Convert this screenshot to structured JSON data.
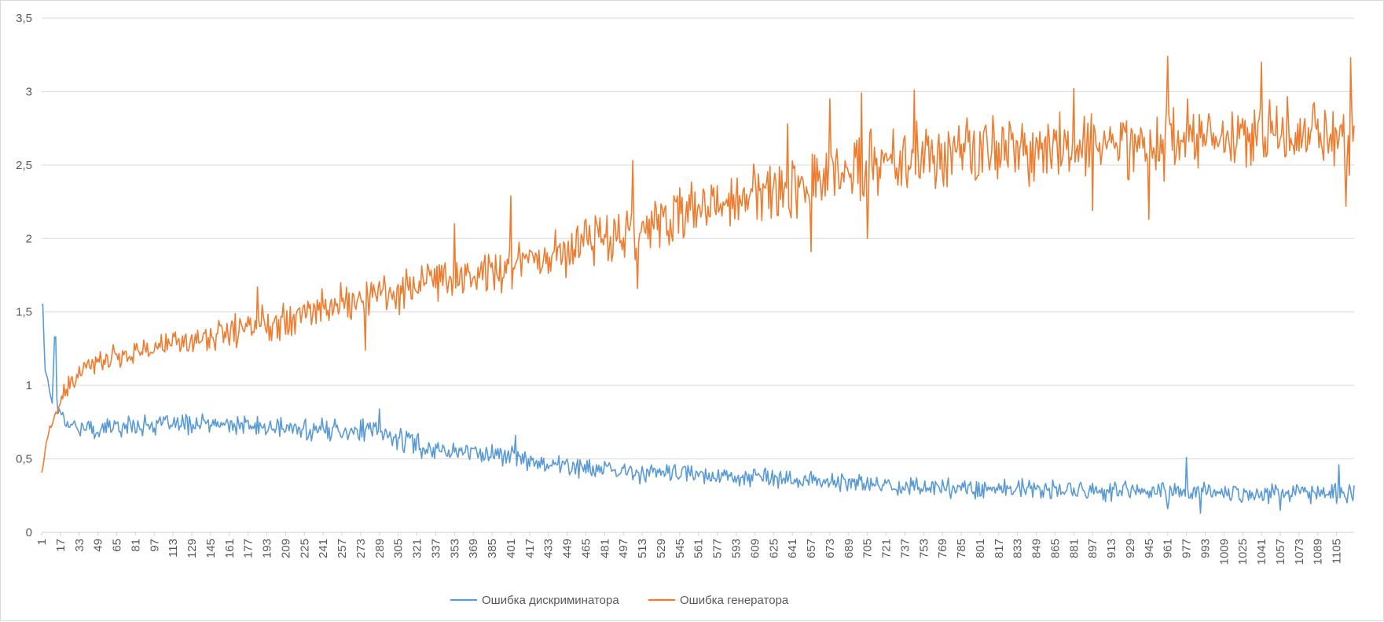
{
  "chart_data": {
    "type": "line",
    "title": "",
    "xlabel": "",
    "ylabel": "",
    "ylim": [
      0,
      3.5
    ],
    "y_ticks": [
      "0",
      "0,5",
      "1",
      "1,5",
      "2",
      "2,5",
      "3",
      "3,5"
    ],
    "y_tick_values": [
      0,
      0.5,
      1,
      1.5,
      2,
      2.5,
      3,
      3.5
    ],
    "x_range": [
      1,
      1120
    ],
    "x_ticks": [
      "1",
      "17",
      "33",
      "49",
      "65",
      "81",
      "97",
      "113",
      "129",
      "145",
      "161",
      "177",
      "193",
      "209",
      "225",
      "241",
      "257",
      "273",
      "289",
      "305",
      "321",
      "337",
      "353",
      "369",
      "385",
      "401",
      "417",
      "433",
      "449",
      "465",
      "481",
      "497",
      "513",
      "529",
      "545",
      "561",
      "577",
      "593",
      "609",
      "625",
      "641",
      "657",
      "673",
      "689",
      "705",
      "721",
      "737",
      "753",
      "769",
      "785",
      "801",
      "817",
      "833",
      "849",
      "865",
      "881",
      "897",
      "913",
      "929",
      "945",
      "961",
      "977",
      "993",
      "1009",
      "1025",
      "1041",
      "1057",
      "1073",
      "1089",
      "1105"
    ],
    "grid": "horizontal",
    "legend_position": "bottom",
    "series": [
      {
        "name": "Ошибка дискриминатора",
        "color": "#5b9bd5",
        "x": [
          1,
          2,
          3,
          4,
          6,
          8,
          10,
          12,
          14,
          15,
          16,
          18,
          20,
          25,
          30,
          40,
          50,
          60,
          80,
          100,
          130,
          160,
          200,
          240,
          280,
          300,
          320,
          340,
          360,
          380,
          400,
          420,
          440,
          460,
          480,
          500,
          540,
          580,
          620,
          660,
          700,
          750,
          800,
          850,
          900,
          950,
          977,
          1000,
          1050,
          1100,
          1120
        ],
        "values": [
          1.48,
          1.55,
          1.3,
          1.1,
          1.05,
          0.95,
          0.88,
          1.33,
          0.9,
          0.82,
          0.85,
          0.8,
          0.78,
          0.75,
          0.72,
          0.7,
          0.7,
          0.72,
          0.73,
          0.73,
          0.74,
          0.73,
          0.71,
          0.7,
          0.69,
          0.65,
          0.6,
          0.56,
          0.55,
          0.54,
          0.52,
          0.49,
          0.46,
          0.44,
          0.42,
          0.41,
          0.4,
          0.39,
          0.37,
          0.35,
          0.33,
          0.31,
          0.3,
          0.29,
          0.28,
          0.27,
          0.28,
          0.27,
          0.27,
          0.27,
          0.27
        ],
        "noise": [
          0,
          0,
          0,
          0,
          0,
          0,
          0,
          0,
          0.03,
          0.04,
          0.04,
          0.04,
          0.05,
          0.05,
          0.05,
          0.06,
          0.06,
          0.06,
          0.06,
          0.06,
          0.06,
          0.06,
          0.06,
          0.07,
          0.07,
          0.07,
          0.07,
          0.06,
          0.06,
          0.06,
          0.07,
          0.07,
          0.06,
          0.06,
          0.06,
          0.06,
          0.06,
          0.06,
          0.06,
          0.06,
          0.06,
          0.06,
          0.06,
          0.06,
          0.06,
          0.06,
          0.07,
          0.06,
          0.06,
          0.06,
          0.06
        ],
        "peaks": [
          {
            "x": 1,
            "y": 1.55
          },
          {
            "x": 13,
            "y": 1.33
          },
          {
            "x": 289,
            "y": 0.84
          },
          {
            "x": 405,
            "y": 0.66
          },
          {
            "x": 977,
            "y": 0.51
          },
          {
            "x": 1107,
            "y": 0.46
          }
        ],
        "troughs": [
          {
            "x": 961,
            "y": 0.16
          },
          {
            "x": 989,
            "y": 0.13
          },
          {
            "x": 1057,
            "y": 0.15
          }
        ]
      },
      {
        "name": "Ошибка генератора",
        "color": "#ed7d31",
        "x": [
          1,
          3,
          5,
          8,
          12,
          16,
          20,
          25,
          33,
          40,
          50,
          65,
          81,
          97,
          113,
          129,
          145,
          161,
          177,
          193,
          209,
          225,
          241,
          257,
          273,
          289,
          305,
          321,
          337,
          353,
          369,
          385,
          401,
          417,
          433,
          449,
          465,
          481,
          497,
          513,
          529,
          545,
          561,
          577,
          593,
          609,
          625,
          641,
          657,
          673,
          689,
          705,
          721,
          737,
          753,
          769,
          785,
          801,
          817,
          833,
          849,
          865,
          881,
          897,
          913,
          929,
          945,
          961,
          977,
          993,
          1009,
          1025,
          1041,
          1057,
          1073,
          1089,
          1105,
          1120
        ],
        "values": [
          0.4,
          0.5,
          0.62,
          0.7,
          0.78,
          0.86,
          0.94,
          1.0,
          1.07,
          1.12,
          1.17,
          1.2,
          1.23,
          1.26,
          1.28,
          1.3,
          1.33,
          1.36,
          1.4,
          1.43,
          1.46,
          1.5,
          1.53,
          1.56,
          1.59,
          1.62,
          1.65,
          1.68,
          1.7,
          1.73,
          1.76,
          1.79,
          1.83,
          1.87,
          1.9,
          1.94,
          1.98,
          2.02,
          2.06,
          2.09,
          2.12,
          2.16,
          2.19,
          2.23,
          2.26,
          2.3,
          2.34,
          2.37,
          2.4,
          2.44,
          2.47,
          2.49,
          2.51,
          2.53,
          2.55,
          2.56,
          2.57,
          2.58,
          2.59,
          2.6,
          2.61,
          2.62,
          2.63,
          2.63,
          2.64,
          2.65,
          2.65,
          2.66,
          2.67,
          2.67,
          2.68,
          2.68,
          2.68,
          2.68,
          2.69,
          2.69,
          2.69,
          2.69
        ],
        "noise": [
          0.02,
          0.03,
          0.04,
          0.04,
          0.05,
          0.05,
          0.06,
          0.06,
          0.06,
          0.06,
          0.06,
          0.07,
          0.07,
          0.08,
          0.08,
          0.08,
          0.09,
          0.1,
          0.1,
          0.11,
          0.11,
          0.11,
          0.12,
          0.12,
          0.12,
          0.13,
          0.13,
          0.13,
          0.14,
          0.14,
          0.14,
          0.14,
          0.15,
          0.15,
          0.15,
          0.16,
          0.16,
          0.16,
          0.17,
          0.17,
          0.17,
          0.18,
          0.18,
          0.18,
          0.19,
          0.19,
          0.19,
          0.2,
          0.2,
          0.2,
          0.21,
          0.21,
          0.21,
          0.21,
          0.22,
          0.22,
          0.22,
          0.22,
          0.22,
          0.22,
          0.22,
          0.22,
          0.22,
          0.22,
          0.22,
          0.22,
          0.22,
          0.22,
          0.22,
          0.22,
          0.22,
          0.22,
          0.22,
          0.22,
          0.22,
          0.22,
          0.22,
          0.22
        ],
        "peaks": [
          {
            "x": 185,
            "y": 1.67
          },
          {
            "x": 353,
            "y": 2.1
          },
          {
            "x": 401,
            "y": 2.29
          },
          {
            "x": 505,
            "y": 2.53
          },
          {
            "x": 637,
            "y": 2.78
          },
          {
            "x": 673,
            "y": 2.95
          },
          {
            "x": 700,
            "y": 2.99
          },
          {
            "x": 745,
            "y": 3.01
          },
          {
            "x": 881,
            "y": 3.02
          },
          {
            "x": 961,
            "y": 3.24
          },
          {
            "x": 1041,
            "y": 3.2
          },
          {
            "x": 1117,
            "y": 3.23
          }
        ],
        "troughs": [
          {
            "x": 277,
            "y": 1.24
          },
          {
            "x": 509,
            "y": 1.66
          },
          {
            "x": 657,
            "y": 1.91
          },
          {
            "x": 705,
            "y": 2.0
          },
          {
            "x": 897,
            "y": 2.19
          },
          {
            "x": 945,
            "y": 2.13
          },
          {
            "x": 1113,
            "y": 2.22
          }
        ]
      }
    ]
  }
}
